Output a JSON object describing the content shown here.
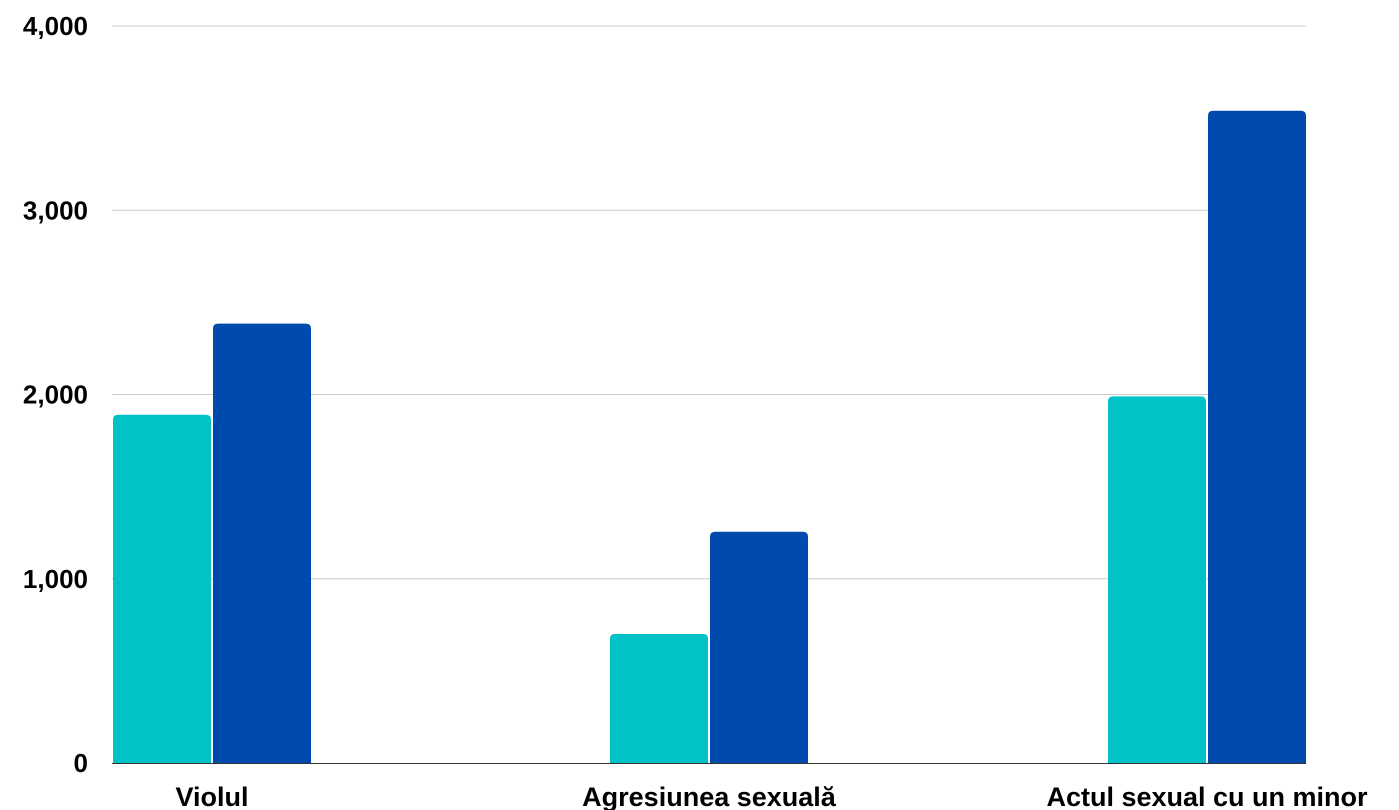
{
  "chart_data": {
    "type": "bar",
    "categories": [
      "Violul",
      "Agresiunea sexuală",
      "Actul sexual cu un minor"
    ],
    "series": [
      {
        "values": [
          1890,
          700,
          1990
        ],
        "color": "#00c2c7"
      },
      {
        "values": [
          2385,
          1255,
          3540
        ],
        "color": "#004aad"
      }
    ],
    "ylim": [
      0,
      4000
    ],
    "yticks": [
      0,
      1000,
      2000,
      3000,
      4000
    ],
    "ytick_labels": [
      "0",
      "1,000",
      "2,000",
      "3,000",
      "4,000"
    ],
    "grid": true,
    "legend": "none",
    "title": "",
    "xlabel": "",
    "ylabel": ""
  }
}
